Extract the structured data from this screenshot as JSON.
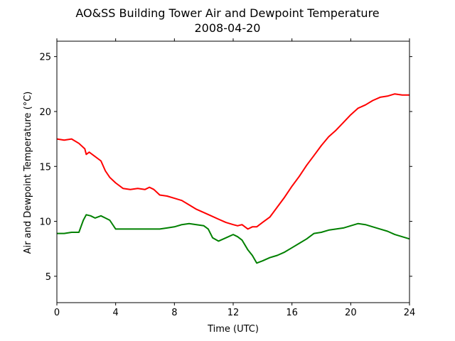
{
  "chart_data": {
    "type": "line",
    "title": "AO&SS Building Tower Air and Dewpoint Temperature",
    "subtitle": "2008-04-20",
    "xlabel": "Time (UTC)",
    "ylabel": "Air and Dewpoint Temperature (°C)",
    "xlim": [
      0,
      24
    ],
    "ylim": [
      2.6,
      26.4
    ],
    "xticks": [
      0,
      4,
      8,
      12,
      16,
      20,
      24
    ],
    "yticks": [
      5,
      10,
      15,
      20,
      25
    ],
    "grid": false,
    "legend": "none",
    "series": [
      {
        "color": "#ff0000",
        "x": [
          0,
          0.5,
          1.0,
          1.5,
          1.9,
          2.0,
          2.2,
          2.5,
          3.0,
          3.3,
          3.6,
          4.0,
          4.5,
          5.0,
          5.5,
          6.0,
          6.3,
          6.6,
          7.0,
          7.5,
          8.0,
          8.5,
          9.0,
          9.5,
          10.0,
          10.5,
          11.0,
          11.5,
          12.0,
          12.3,
          12.6,
          13.0,
          13.3,
          13.6,
          14.0,
          14.5,
          15.0,
          15.5,
          16.0,
          16.5,
          17.0,
          17.5,
          18.0,
          18.5,
          19.0,
          19.5,
          20.0,
          20.5,
          21.0,
          21.5,
          22.0,
          22.5,
          23.0,
          23.5,
          24.0
        ],
        "values": [
          17.5,
          17.4,
          17.5,
          17.1,
          16.6,
          16.1,
          16.3,
          16.0,
          15.5,
          14.6,
          14.0,
          13.5,
          13.0,
          12.9,
          13.0,
          12.9,
          13.1,
          12.9,
          12.4,
          12.3,
          12.1,
          11.9,
          11.5,
          11.1,
          10.8,
          10.5,
          10.2,
          9.9,
          9.7,
          9.6,
          9.7,
          9.3,
          9.5,
          9.5,
          9.9,
          10.4,
          11.3,
          12.2,
          13.2,
          14.1,
          15.1,
          16.0,
          16.9,
          17.7,
          18.3,
          19.0,
          19.7,
          20.3,
          20.6,
          21.0,
          21.3,
          21.4,
          21.6,
          21.5,
          21.5
        ]
      },
      {
        "color": "#008000",
        "x": [
          0,
          0.5,
          1.0,
          1.5,
          1.8,
          2.0,
          2.3,
          2.6,
          3.0,
          3.3,
          3.6,
          4.0,
          4.5,
          5.0,
          5.5,
          6.0,
          6.5,
          7.0,
          7.5,
          8.0,
          8.5,
          9.0,
          9.5,
          10.0,
          10.3,
          10.6,
          11.0,
          11.5,
          12.0,
          12.3,
          12.6,
          13.0,
          13.3,
          13.6,
          14.0,
          14.5,
          15.0,
          15.5,
          16.0,
          16.5,
          17.0,
          17.5,
          18.0,
          18.5,
          19.0,
          19.5,
          20.0,
          20.5,
          21.0,
          21.5,
          22.0,
          22.5,
          23.0,
          23.5,
          24.0
        ],
        "values": [
          8.9,
          8.9,
          9.0,
          9.0,
          10.1,
          10.6,
          10.5,
          10.3,
          10.5,
          10.3,
          10.1,
          9.3,
          9.3,
          9.3,
          9.3,
          9.3,
          9.3,
          9.3,
          9.4,
          9.5,
          9.7,
          9.8,
          9.7,
          9.6,
          9.3,
          8.5,
          8.2,
          8.5,
          8.8,
          8.6,
          8.3,
          7.4,
          6.9,
          6.2,
          6.4,
          6.7,
          6.9,
          7.2,
          7.6,
          8.0,
          8.4,
          8.9,
          9.0,
          9.2,
          9.3,
          9.4,
          9.6,
          9.8,
          9.7,
          9.5,
          9.3,
          9.1,
          8.8,
          8.6,
          8.4
        ]
      }
    ]
  }
}
